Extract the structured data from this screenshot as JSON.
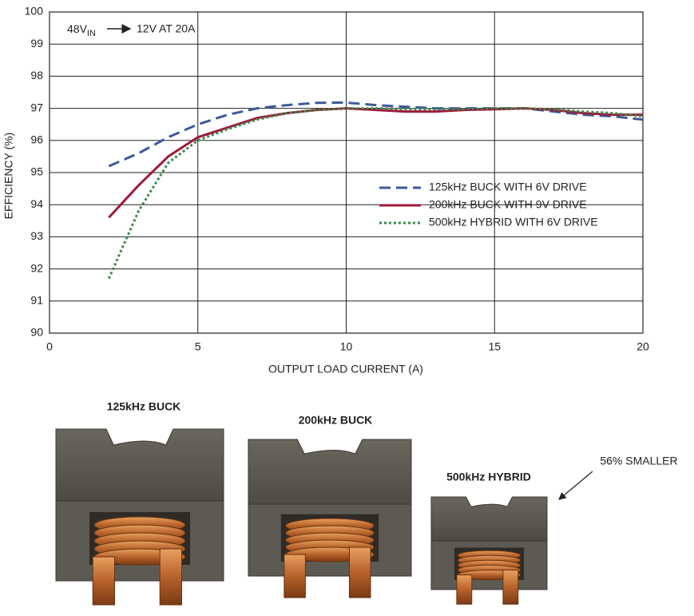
{
  "chart_data": {
    "type": "line",
    "annotation": {
      "prefix": "48V",
      "subscript": "IN",
      "suffix": "12V AT 20A"
    },
    "x_label": "OUTPUT LOAD CURRENT (A)",
    "y_label": "EFFICIENCY (%)",
    "x": [
      2,
      3,
      4,
      5,
      6,
      7,
      8,
      9,
      10,
      11,
      12,
      13,
      14,
      15,
      16,
      17,
      18,
      19,
      20
    ],
    "series": [
      {
        "name": "125kHz BUCK WITH 6V DRIVE",
        "color": "#3d5a9a",
        "dash": "dashed",
        "values": [
          95.2,
          95.6,
          96.1,
          96.5,
          96.8,
          97.0,
          97.1,
          97.17,
          97.18,
          97.1,
          97.05,
          97.0,
          97.0,
          97.0,
          97.0,
          96.9,
          96.8,
          96.75,
          96.65
        ]
      },
      {
        "name": "200kHz BUCK WITH 9V DRIVE",
        "color": "#9e1b3a",
        "dash": "solid",
        "values": [
          93.6,
          94.6,
          95.5,
          96.1,
          96.4,
          96.7,
          96.85,
          96.95,
          97.0,
          96.95,
          96.9,
          96.9,
          96.95,
          96.97,
          97.0,
          96.95,
          96.85,
          96.8,
          96.8
        ]
      },
      {
        "name": "500kHz HYBRID WITH 6V DRIVE",
        "color": "#3a8a4a",
        "dash": "dotted",
        "values": [
          91.7,
          93.8,
          95.3,
          96.0,
          96.35,
          96.65,
          96.85,
          96.95,
          97.0,
          97.0,
          96.98,
          96.97,
          96.97,
          97.0,
          97.0,
          96.97,
          96.9,
          96.85,
          96.75
        ]
      }
    ],
    "xlim": [
      0,
      20
    ],
    "xticks": [
      0,
      5,
      10,
      15,
      20
    ],
    "ylim": [
      90,
      100
    ],
    "yticks": [
      90,
      91,
      92,
      93,
      94,
      95,
      96,
      97,
      98,
      99,
      100
    ],
    "grid": true,
    "legend_position": "center right"
  },
  "photo_labels": [
    "125kHz BUCK",
    "200kHz BUCK",
    "500kHz HYBRID"
  ],
  "photo_note": "56% SMALLER"
}
